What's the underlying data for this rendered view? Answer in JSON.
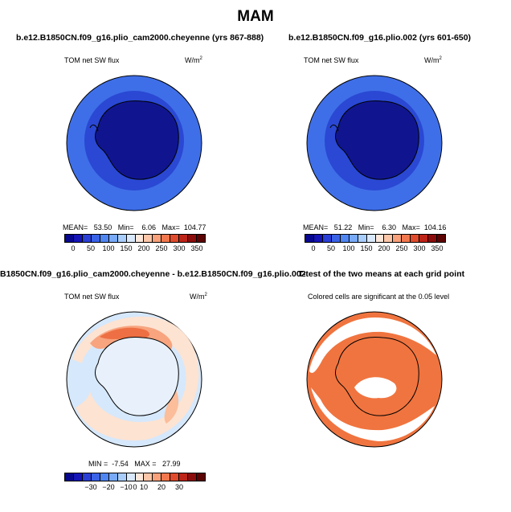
{
  "title": "MAM",
  "panels": [
    {
      "title": "b.e12.B1850CN.f09_g16.plio_cam2000.cheyenne (yrs 867-888)",
      "variable": "TOM net SW flux",
      "units": "W/m",
      "units_sup": "2",
      "stats": "MEAN=   53.50   Min=    6.06   Max=  104.77"
    },
    {
      "title": "b.e12.B1850CN.f09_g16.plio.002 (yrs 601-650)",
      "variable": "TOM net SW flux",
      "units": "W/m",
      "units_sup": "2",
      "stats": "MEAN=   51.22   Min=    6.30   Max=  104.16"
    },
    {
      "title": "B1850CN.f09_g16.plio_cam2000.cheyenne - b.e12.B1850CN.f09_g16.plio.002",
      "variable": "TOM net SW flux",
      "units": "W/m",
      "units_sup": "2",
      "stats": "MIN =  -7.54   MAX =   27.99"
    },
    {
      "title": "T-test of the two means at each grid point",
      "note": "Colored cells are significant at the 0.05 level"
    }
  ],
  "colorbar_abs": {
    "colors": [
      "#08088f",
      "#1515b8",
      "#2a3fd6",
      "#3a62e6",
      "#4f86f2",
      "#79aaf7",
      "#a9cdfb",
      "#d9e9fb",
      "#fde7da",
      "#fcc6a8",
      "#f9a17a",
      "#f1784e",
      "#df4b2c",
      "#bd2418",
      "#8c0c0c",
      "#5c0303"
    ],
    "ticks": [
      "0",
      "50",
      "100",
      "150",
      "200",
      "250",
      "300",
      "350"
    ]
  },
  "colorbar_diff": {
    "colors": [
      "#08088f",
      "#1515b8",
      "#2a3fd6",
      "#3a62e6",
      "#4f86f2",
      "#79aaf7",
      "#a9cdfb",
      "#d9e9fb",
      "#fde7da",
      "#fcc6a8",
      "#f9a17a",
      "#f1784e",
      "#df4b2c",
      "#bd2418",
      "#8c0c0c",
      "#5c0303"
    ],
    "ticks": [
      "−30",
      "−20",
      "−10",
      "0",
      "10",
      "20",
      "30"
    ]
  },
  "chart_data": [
    {
      "type": "heatmap",
      "title": "b.e12.B1850CN.f09_g16.plio_cam2000.cheyenne (yrs 867-888)",
      "variable": "TOM net SW flux",
      "units": "W/m2",
      "mean": 53.5,
      "min": 6.06,
      "max": 104.77,
      "colorbar_range": [
        0,
        350
      ]
    },
    {
      "type": "heatmap",
      "title": "b.e12.B1850CN.f09_g16.plio.002 (yrs 601-650)",
      "variable": "TOM net SW flux",
      "units": "W/m2",
      "mean": 51.22,
      "min": 6.3,
      "max": 104.16,
      "colorbar_range": [
        0,
        350
      ]
    },
    {
      "type": "heatmap",
      "title": "B1850CN.f09_g16.plio_cam2000.cheyenne - b.e12.B1850CN.f09_g16.plio.002",
      "variable": "TOM net SW flux",
      "units": "W/m2",
      "min": -7.54,
      "max": 27.99,
      "colorbar_range": [
        -35,
        35
      ]
    },
    {
      "type": "heatmap",
      "title": "T-test of the two means at each grid point",
      "note": "Colored cells are significant at the 0.05 level"
    }
  ]
}
